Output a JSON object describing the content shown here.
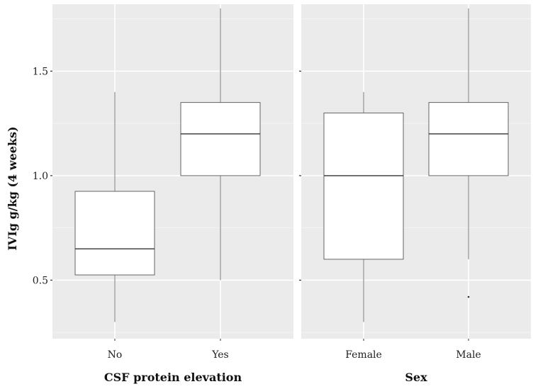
{
  "chart_data": [
    {
      "type": "box",
      "xlabel": "CSF protein elevation",
      "ylabel": "IVIg g/kg (4 weeks)",
      "ylim": [
        0.22,
        1.82
      ],
      "yticks": [
        0.5,
        1.0,
        1.5
      ],
      "ytick_labels": [
        "0.5",
        "1.0",
        "1.5"
      ],
      "grid": true,
      "categories": [
        "No",
        "Yes"
      ],
      "boxes": [
        {
          "category": "No",
          "whisker_low": 0.3,
          "q1": 0.525,
          "median": 0.65,
          "q3": 0.925,
          "whisker_high": 1.4,
          "outliers": []
        },
        {
          "category": "Yes",
          "whisker_low": 0.5,
          "q1": 1.0,
          "median": 1.2,
          "q3": 1.35,
          "whisker_high": 1.8,
          "outliers": []
        }
      ]
    },
    {
      "type": "box",
      "xlabel": "Sex",
      "ylabel": "",
      "ylim": [
        0.22,
        1.82
      ],
      "yticks": [
        0.5,
        1.0,
        1.5
      ],
      "grid": true,
      "categories": [
        "Female",
        "Male"
      ],
      "boxes": [
        {
          "category": "Female",
          "whisker_low": 0.3,
          "q1": 0.6,
          "median": 1.0,
          "q3": 1.3,
          "whisker_high": 1.4,
          "outliers": []
        },
        {
          "category": "Male",
          "whisker_low": 0.6,
          "q1": 1.0,
          "median": 1.2,
          "q3": 1.35,
          "whisker_high": 1.8,
          "outliers": [
            0.42
          ]
        }
      ]
    }
  ]
}
